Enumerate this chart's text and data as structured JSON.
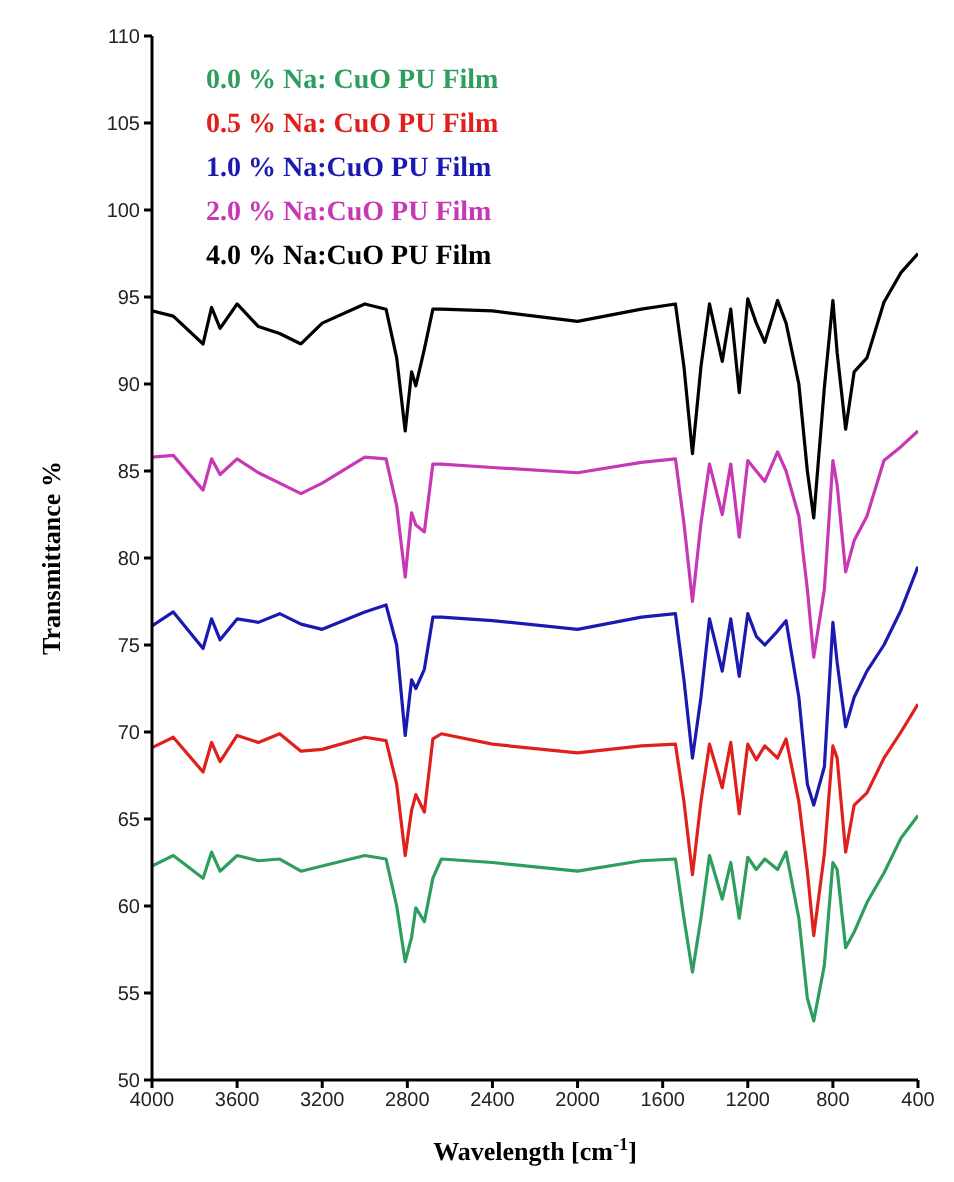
{
  "chart_data": {
    "type": "line",
    "xlabel": "Wavelength [cm$^{-1}$]",
    "ylabel": "Transmittance %",
    "x": [
      4000,
      3900,
      3760,
      3720,
      3680,
      3600,
      3500,
      3400,
      3300,
      3200,
      3000,
      2900,
      2850,
      2810,
      2780,
      2760,
      2720,
      2680,
      2640,
      2400,
      2000,
      1700,
      1540,
      1500,
      1460,
      1420,
      1380,
      1320,
      1280,
      1240,
      1200,
      1160,
      1120,
      1060,
      1020,
      960,
      920,
      890,
      840,
      800,
      780,
      740,
      700,
      640,
      560,
      480,
      400
    ],
    "series": [
      {
        "name": "0.0 % Na: CuO PU Film",
        "color": "#2e9e5e",
        "values": [
          62.3,
          62.9,
          61.6,
          63.1,
          62.0,
          62.9,
          62.6,
          62.7,
          62.0,
          62.3,
          62.9,
          62.7,
          60.0,
          56.8,
          58.2,
          59.9,
          59.1,
          61.6,
          62.7,
          62.5,
          62.0,
          62.6,
          62.7,
          59.3,
          56.2,
          59.3,
          62.9,
          60.4,
          62.5,
          59.3,
          62.8,
          62.1,
          62.7,
          62.1,
          63.1,
          59.3,
          54.7,
          53.4,
          56.6,
          62.5,
          62.1,
          57.6,
          58.5,
          60.2,
          61.9,
          63.9,
          65.2
        ]
      },
      {
        "name": "0.5 % Na: CuO PU Film",
        "color": "#e0201c",
        "values": [
          69.1,
          69.7,
          67.7,
          69.4,
          68.3,
          69.8,
          69.4,
          69.9,
          68.9,
          69.0,
          69.7,
          69.5,
          67.0,
          62.9,
          65.5,
          66.4,
          65.4,
          69.6,
          69.9,
          69.3,
          68.8,
          69.2,
          69.3,
          66.0,
          61.8,
          66.0,
          69.3,
          66.8,
          69.4,
          65.3,
          69.3,
          68.4,
          69.2,
          68.5,
          69.6,
          66.0,
          62.0,
          58.3,
          63.0,
          69.2,
          68.5,
          63.1,
          65.8,
          66.5,
          68.5,
          70.0,
          71.6
        ]
      },
      {
        "name": "1.0 % Na:CuO PU Film",
        "color": "#1a1ab0",
        "values": [
          76.1,
          76.9,
          74.8,
          76.5,
          75.3,
          76.5,
          76.3,
          76.8,
          76.2,
          75.9,
          76.9,
          77.3,
          75.0,
          69.8,
          73.0,
          72.5,
          73.6,
          76.6,
          76.6,
          76.4,
          75.9,
          76.6,
          76.8,
          73.0,
          68.5,
          72.0,
          76.5,
          73.5,
          76.5,
          73.2,
          76.8,
          75.5,
          75.0,
          75.8,
          76.4,
          72.0,
          67.0,
          65.8,
          68.0,
          76.3,
          74.0,
          70.3,
          72.0,
          73.5,
          75.0,
          77.0,
          79.5
        ]
      },
      {
        "name": "2.0 % Na:CuO PU Film",
        "color": "#c837b4",
        "values": [
          85.8,
          85.9,
          83.9,
          85.7,
          84.8,
          85.7,
          84.9,
          84.3,
          83.7,
          84.3,
          85.8,
          85.7,
          83.0,
          78.9,
          82.6,
          81.9,
          81.5,
          85.4,
          85.4,
          85.2,
          84.9,
          85.5,
          85.7,
          82.0,
          77.5,
          82.0,
          85.4,
          82.5,
          85.4,
          81.2,
          85.6,
          85.0,
          84.4,
          86.1,
          85.0,
          82.4,
          78.2,
          74.3,
          78.2,
          85.6,
          84.2,
          79.2,
          81.0,
          82.4,
          85.6,
          86.4,
          87.3
        ]
      },
      {
        "name": "4.0 % Na:CuO PU Film",
        "color": "#000000",
        "values": [
          94.2,
          93.9,
          92.3,
          94.4,
          93.2,
          94.6,
          93.3,
          92.9,
          92.3,
          93.5,
          94.6,
          94.3,
          91.5,
          87.3,
          90.7,
          89.9,
          92.0,
          94.3,
          94.3,
          94.2,
          93.6,
          94.3,
          94.6,
          91.0,
          86.0,
          91.0,
          94.6,
          91.3,
          94.3,
          89.5,
          94.9,
          93.5,
          92.4,
          94.8,
          93.5,
          90.0,
          85.0,
          82.3,
          89.8,
          94.8,
          91.8,
          87.4,
          90.7,
          91.5,
          94.7,
          96.4,
          97.5
        ]
      }
    ],
    "xlim": [
      4000,
      400
    ],
    "xticks": [
      4000,
      3600,
      3200,
      2800,
      2400,
      2000,
      1600,
      1200,
      800,
      400
    ],
    "ylim": [
      50,
      110
    ],
    "yticks": [
      50,
      55,
      60,
      65,
      70,
      75,
      80,
      85,
      90,
      95,
      100,
      105,
      110
    ],
    "marker": "none",
    "line_style": "solid",
    "grid": false
  }
}
